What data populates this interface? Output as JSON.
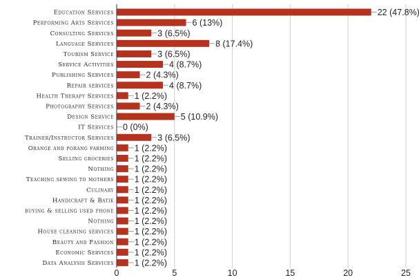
{
  "chart_data": {
    "type": "bar",
    "orientation": "horizontal",
    "categories": [
      "Education Services",
      "Performing Arts Services",
      "Consulting Services",
      "Language Services",
      "Tourism Service",
      "Service Activities",
      "Publishing Services",
      "Repair services",
      "Health Therapy Services",
      "Photography Services",
      "Design Service",
      "IT Services",
      "Trainer/Instructor Services",
      "Orange and porang farming",
      "Selling groceries",
      "Nothing",
      "Teaching sewing to mothers",
      "Culinary",
      "Handicraft & Batik",
      "buying & selling  used  phone",
      "Nothing",
      "House cleaning services",
      "Beauty and Fashion",
      "Economic Services",
      "Data Analysis Services"
    ],
    "values": [
      22,
      6,
      3,
      8,
      3,
      4,
      2,
      4,
      1,
      2,
      5,
      0,
      3,
      1,
      1,
      1,
      1,
      1,
      1,
      1,
      1,
      1,
      1,
      1,
      1
    ],
    "data_labels": [
      "22 (47.8%)",
      "6 (13%)",
      "3 (6.5%)",
      "8 (17.4%)",
      "3 (6.5%)",
      "4 (8.7%)",
      "2 (4.3%)",
      "4 (8.7%)",
      "1 (2.2%)",
      "2 (4.3%)",
      "5 (10.9%)",
      "0 (0%)",
      "3 (6.5%)",
      "1 (2.2%)",
      "1 (2.2%)",
      "1 (2.2%)",
      "1 (2.2%)",
      "1 (2.2%)",
      "1 (2.2%)",
      "1 (2.2%)",
      "1 (2.2%)",
      "1 (2.2%)",
      "1 (2.2%)",
      "1 (2.2%)",
      "1 (2.2%)"
    ],
    "xlim": [
      0,
      25
    ],
    "xticks": [
      "0",
      "5",
      "10",
      "15",
      "20",
      "25"
    ],
    "grid": true,
    "bar_color": "#b5321e"
  }
}
